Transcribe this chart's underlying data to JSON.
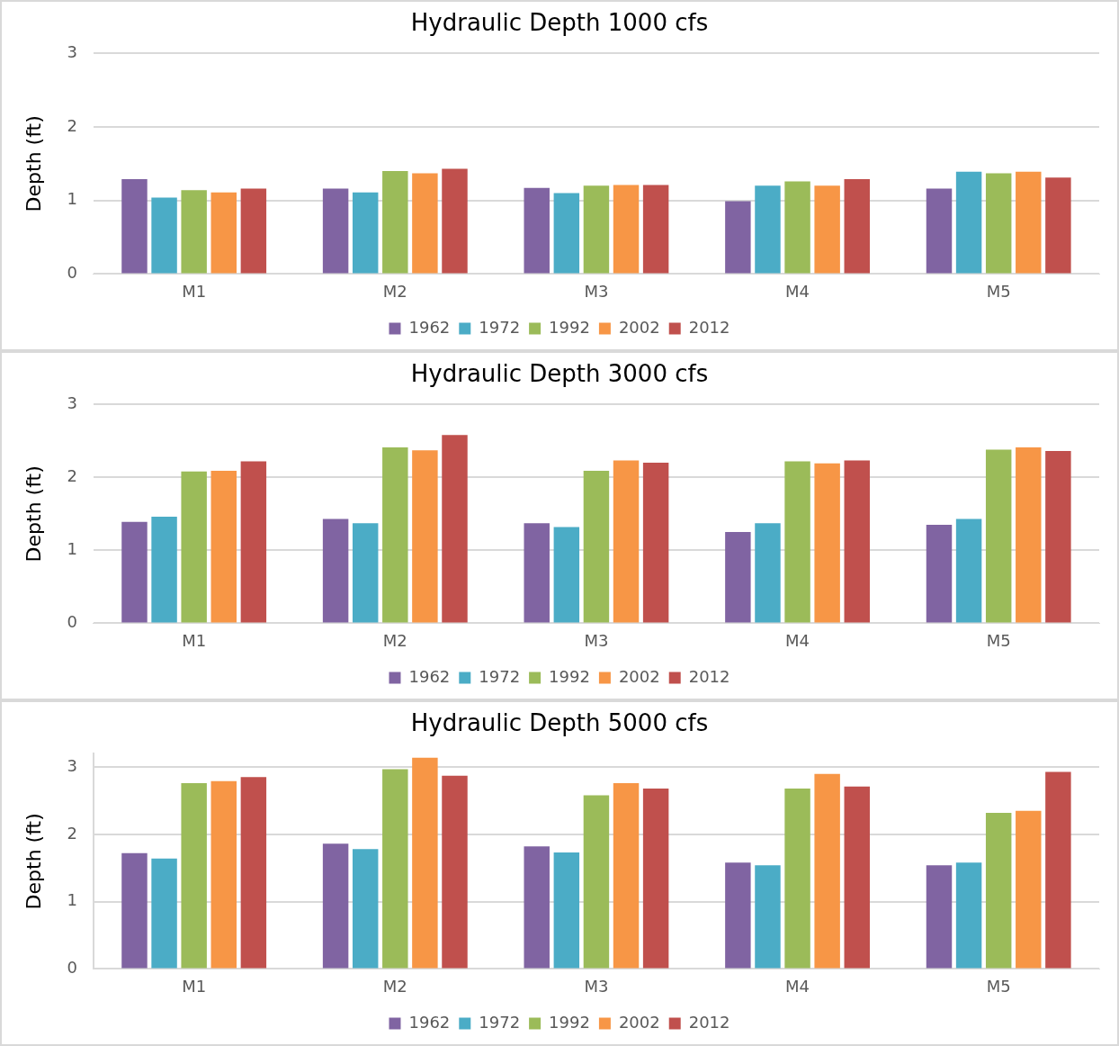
{
  "chart_data": [
    {
      "type": "bar",
      "title": "Hydraulic Depth 1000 cfs",
      "ylabel": "Depth (ft)",
      "categories": [
        "M1",
        "M2",
        "M3",
        "M4",
        "M5"
      ],
      "series": [
        {
          "name": "1962",
          "color": "#8064a2",
          "values": [
            1.29,
            1.16,
            1.17,
            0.99,
            1.16
          ]
        },
        {
          "name": "1972",
          "color": "#4bacc6",
          "values": [
            1.04,
            1.11,
            1.1,
            1.2,
            1.39
          ]
        },
        {
          "name": "1992",
          "color": "#9bbb59",
          "values": [
            1.14,
            1.4,
            1.2,
            1.26,
            1.37
          ]
        },
        {
          "name": "2002",
          "color": "#f79646",
          "values": [
            1.11,
            1.37,
            1.21,
            1.2,
            1.39
          ]
        },
        {
          "name": "2012",
          "color": "#c0504d",
          "values": [
            1.16,
            1.43,
            1.21,
            1.29,
            1.31
          ]
        }
      ],
      "ylim": [
        0,
        3
      ],
      "yticks": [
        0,
        1,
        2,
        3
      ],
      "grid": "y",
      "legend": "bottom"
    },
    {
      "type": "bar",
      "title": "Hydraulic Depth 3000 cfs",
      "ylabel": "Depth (ft)",
      "categories": [
        "M1",
        "M2",
        "M3",
        "M4",
        "M5"
      ],
      "series": [
        {
          "name": "1962",
          "color": "#8064a2",
          "values": [
            1.39,
            1.43,
            1.37,
            1.25,
            1.35
          ]
        },
        {
          "name": "1972",
          "color": "#4bacc6",
          "values": [
            1.46,
            1.37,
            1.32,
            1.37,
            1.43
          ]
        },
        {
          "name": "1992",
          "color": "#9bbb59",
          "values": [
            2.08,
            2.41,
            2.09,
            2.22,
            2.38
          ]
        },
        {
          "name": "2002",
          "color": "#f79646",
          "values": [
            2.09,
            2.37,
            2.23,
            2.19,
            2.41
          ]
        },
        {
          "name": "2012",
          "color": "#c0504d",
          "values": [
            2.22,
            2.58,
            2.2,
            2.23,
            2.36
          ]
        }
      ],
      "ylim": [
        0,
        3
      ],
      "yticks": [
        0,
        1,
        2,
        3
      ],
      "grid": "y",
      "legend": "bottom"
    },
    {
      "type": "bar",
      "title": "Hydraulic Depth 5000 cfs",
      "ylabel": "Depth (ft)",
      "categories": [
        "M1",
        "M2",
        "M3",
        "M4",
        "M5"
      ],
      "series": [
        {
          "name": "1962",
          "color": "#8064a2",
          "values": [
            1.72,
            1.86,
            1.82,
            1.58,
            1.54
          ]
        },
        {
          "name": "1972",
          "color": "#4bacc6",
          "values": [
            1.64,
            1.78,
            1.73,
            1.54,
            1.58
          ]
        },
        {
          "name": "1992",
          "color": "#9bbb59",
          "values": [
            2.76,
            2.97,
            2.58,
            2.68,
            2.32
          ]
        },
        {
          "name": "2002",
          "color": "#f79646",
          "values": [
            2.79,
            3.14,
            2.76,
            2.9,
            2.35
          ]
        },
        {
          "name": "2012",
          "color": "#c0504d",
          "values": [
            2.85,
            2.87,
            2.68,
            2.71,
            2.93
          ]
        }
      ],
      "ylim": [
        0,
        3.2
      ],
      "yticks": [
        0,
        1,
        2,
        3
      ],
      "grid": "y",
      "legend": "bottom"
    }
  ]
}
